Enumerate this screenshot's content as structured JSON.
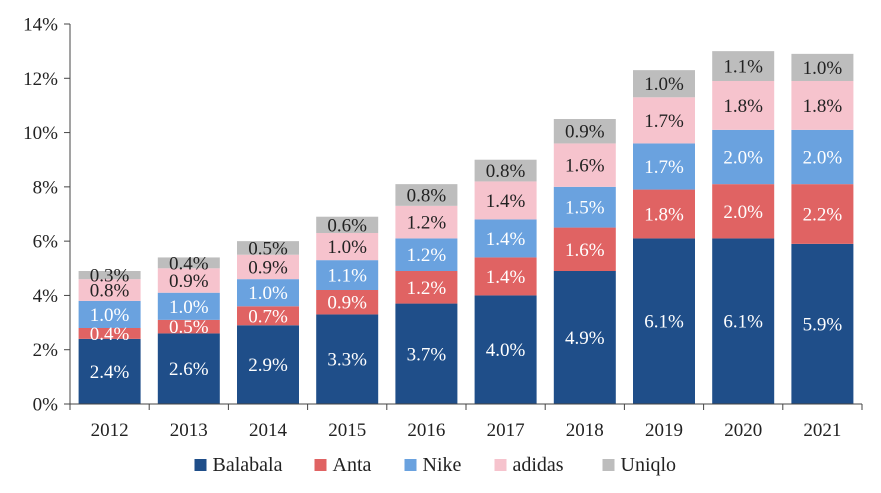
{
  "chart_data": {
    "type": "bar",
    "stacked": true,
    "title": "",
    "xlabel": "",
    "ylabel": "",
    "ylim": [
      0,
      14
    ],
    "yticks": [
      "0%",
      "2%",
      "4%",
      "6%",
      "8%",
      "10%",
      "12%",
      "14%"
    ],
    "categories": [
      "2012",
      "2013",
      "2014",
      "2015",
      "2016",
      "2017",
      "2018",
      "2019",
      "2020",
      "2021"
    ],
    "legend_position": "bottom",
    "grid": false,
    "series": [
      {
        "name": "Balabala",
        "color": "#1f4e89",
        "label_color": "#ffffff",
        "values": [
          2.4,
          2.6,
          2.9,
          3.3,
          3.7,
          4.0,
          4.9,
          6.1,
          6.1,
          5.9
        ],
        "labels": [
          "2.4%",
          "2.6%",
          "2.9%",
          "3.3%",
          "3.7%",
          "4.0%",
          "4.9%",
          "6.1%",
          "6.1%",
          "5.9%"
        ]
      },
      {
        "name": "Anta",
        "color": "#e06363",
        "label_color": "#ffffff",
        "values": [
          0.4,
          0.5,
          0.7,
          0.9,
          1.2,
          1.4,
          1.6,
          1.8,
          2.0,
          2.2
        ],
        "labels": [
          "0.4%",
          "0.5%",
          "0.7%",
          "0.9%",
          "1.2%",
          "1.4%",
          "1.6%",
          "1.8%",
          "2.0%",
          "2.2%"
        ]
      },
      {
        "name": "Nike",
        "color": "#6aa2df",
        "label_color": "#ffffff",
        "values": [
          1.0,
          1.0,
          1.0,
          1.1,
          1.2,
          1.4,
          1.5,
          1.7,
          2.0,
          2.0
        ],
        "labels": [
          "1.0%",
          "1.0%",
          "1.0%",
          "1.1%",
          "1.2%",
          "1.4%",
          "1.5%",
          "1.7%",
          "2.0%",
          "2.0%"
        ]
      },
      {
        "name": "adidas",
        "color": "#f6c3cd",
        "label_color": "#222222",
        "values": [
          0.8,
          0.9,
          0.9,
          1.0,
          1.2,
          1.4,
          1.6,
          1.7,
          1.8,
          1.8
        ],
        "labels": [
          "0.8%",
          "0.9%",
          "0.9%",
          "1.0%",
          "1.2%",
          "1.4%",
          "1.6%",
          "1.7%",
          "1.8%",
          "1.8%"
        ]
      },
      {
        "name": "Uniqlo",
        "color": "#bdbdbd",
        "label_color": "#222222",
        "values": [
          0.3,
          0.4,
          0.5,
          0.6,
          0.8,
          0.8,
          0.9,
          1.0,
          1.1,
          1.0
        ],
        "labels": [
          "0.3%",
          "0.4%",
          "0.5%",
          "0.6%",
          "0.8%",
          "0.8%",
          "0.9%",
          "1.0%",
          "1.1%",
          "1.0%"
        ]
      }
    ]
  }
}
